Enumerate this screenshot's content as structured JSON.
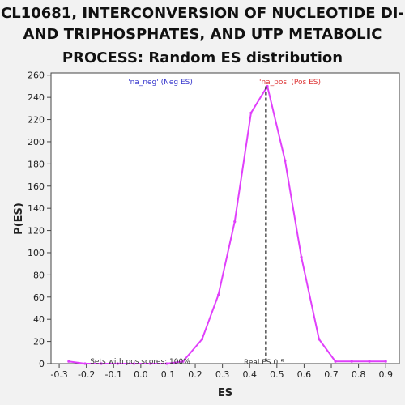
{
  "chart_data": {
    "type": "line",
    "title_lines": [
      "CL10681, INTERCONVERSION OF NUCLEOTIDE DI-",
      "AND TRIPHOSPHATES, AND UTP METABOLIC",
      "PROCESS: Random ES distribution"
    ],
    "xlabel": "ES",
    "ylabel": "P(ES)",
    "xlim": [
      -0.33,
      0.95
    ],
    "ylim": [
      0,
      262
    ],
    "xticks": [
      -0.3,
      -0.2,
      -0.1,
      0.0,
      0.1,
      0.2,
      0.3,
      0.4,
      0.5,
      0.6,
      0.7,
      0.8,
      0.9
    ],
    "xtick_labels": [
      "-0.3",
      "-0.2",
      "-0.1",
      "0.0",
      "0.1",
      "0.2",
      "0.3",
      "0.4",
      "0.5",
      "0.6",
      "0.7",
      "0.8",
      "0.9"
    ],
    "yticks": [
      0,
      20,
      40,
      60,
      80,
      100,
      120,
      140,
      160,
      180,
      200,
      220,
      240,
      260
    ],
    "ytick_labels": [
      "0",
      "20",
      "40",
      "60",
      "80",
      "100",
      "120",
      "140",
      "160",
      "180",
      "200",
      "220",
      "240",
      "260"
    ],
    "series": [
      {
        "color": "#e040fb",
        "x": [
          -0.265,
          -0.205,
          -0.145,
          -0.085,
          -0.025,
          0.035,
          0.095,
          0.155,
          0.225,
          0.285,
          0.345,
          0.405,
          0.465,
          0.53,
          0.59,
          0.655,
          0.715,
          0.775,
          0.84,
          0.9
        ],
        "y": [
          2,
          0,
          0,
          0,
          0,
          0,
          0,
          2,
          22,
          62,
          128,
          226,
          250,
          183,
          96,
          22,
          2,
          2,
          2,
          2
        ]
      }
    ],
    "real_es": 0.46,
    "annotations": {
      "neg_label": "'na_neg' (Neg ES)",
      "pos_label": "'na_pos' (Pos ES)",
      "sets_label": "Sets with pos scores: 100%",
      "real_es_label": "Real ES 0.5"
    },
    "colors": {
      "neg": "#3333cc",
      "pos": "#dd3333",
      "line": "#e040fb"
    },
    "grid": false,
    "legend": "none"
  }
}
